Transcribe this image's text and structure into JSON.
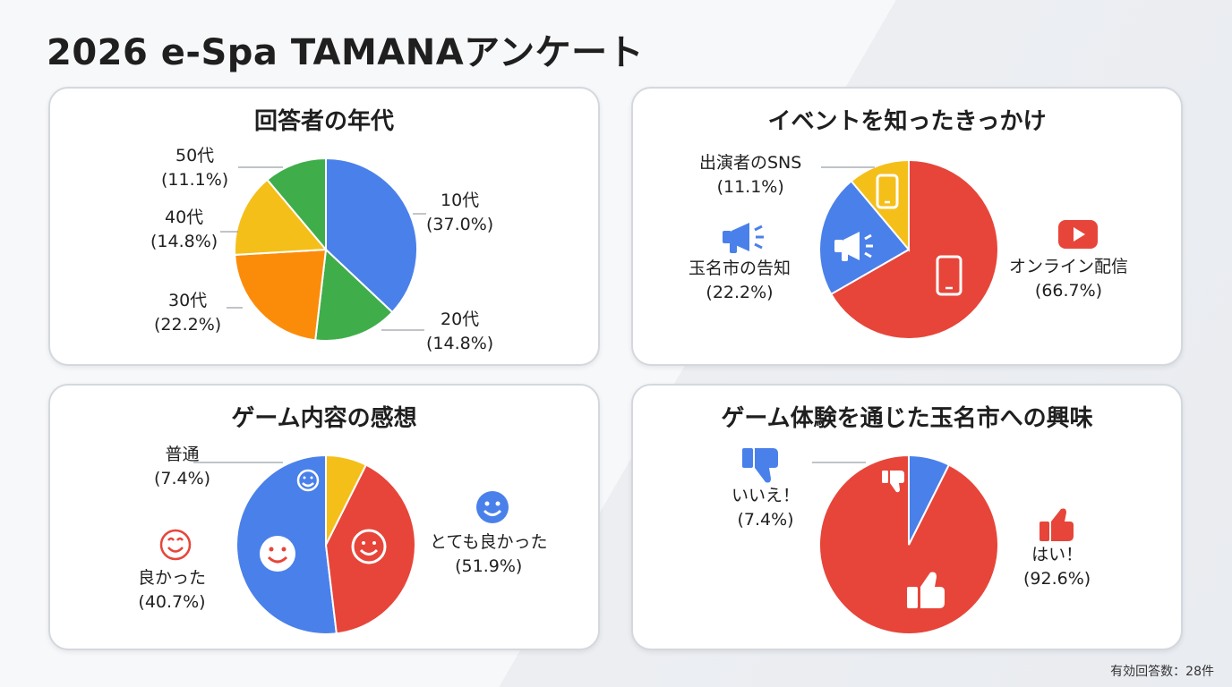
{
  "page_title": "2026 e-Spa TAMANAアンケート",
  "footer": "有効回答数：28件",
  "chart_data": [
    {
      "type": "pie",
      "title": "回答者の年代",
      "slices": [
        {
          "label": "10代",
          "value": 37.0,
          "display": "(37.0%)",
          "color": "#4a80ea"
        },
        {
          "label": "20代",
          "value": 14.8,
          "display": "(14.8%)",
          "color": "#3fae4a"
        },
        {
          "label": "30代",
          "value": 22.2,
          "display": "(22.2%)",
          "color": "#fb8c0a"
        },
        {
          "label": "40代",
          "value": 14.8,
          "display": "(14.8%)",
          "color": "#f5bf1a"
        },
        {
          "label": "50代",
          "value": 11.1,
          "display": "(11.1%)",
          "color": "#3fae4a"
        }
      ]
    },
    {
      "type": "pie",
      "title": "イベントを知ったきっかけ",
      "slices": [
        {
          "label": "オンライン配信",
          "value": 66.7,
          "display": "(66.7%)",
          "color": "#e7453a",
          "icon": "smartphone-icon"
        },
        {
          "label": "玉名市の告知",
          "value": 22.2,
          "display": "(22.2%)",
          "color": "#4a80ea",
          "icon": "megaphone-icon"
        },
        {
          "label": "出演者のSNS",
          "value": 11.1,
          "display": "(11.1%)",
          "color": "#f5bf1a",
          "icon": "smartphone-icon"
        }
      ]
    },
    {
      "type": "pie",
      "title": "ゲーム内容の感想",
      "slices": [
        {
          "label": "とても良かった",
          "value": 51.9,
          "display": "(51.9%)",
          "color": "#4a80ea",
          "icon": "smiley-icon"
        },
        {
          "label": "良かった",
          "value": 40.7,
          "display": "(40.7%)",
          "color": "#e7453a",
          "icon": "smiley-icon"
        },
        {
          "label": "普通",
          "value": 7.4,
          "display": "(7.4%)",
          "color": "#f5bf1a",
          "icon": "smiley-icon"
        }
      ]
    },
    {
      "type": "pie",
      "title": "ゲーム体験を通じた玉名市への興味",
      "slices": [
        {
          "label": "はい！",
          "value": 92.6,
          "display": "(92.6%)",
          "color": "#e7453a",
          "icon": "thumbs-up-icon"
        },
        {
          "label": "いいえ！",
          "value": 7.4,
          "display": "(7.4%)",
          "color": "#4a80ea",
          "icon": "thumbs-down-icon"
        }
      ]
    }
  ],
  "icon_colors": {
    "youtube": "#e7453a",
    "megaphone": "#4a80ea",
    "smiley_blue": "#4a80ea",
    "smiley_red": "#e7453a",
    "thumbs_blue": "#4a80ea",
    "thumbs_red": "#e7453a"
  }
}
